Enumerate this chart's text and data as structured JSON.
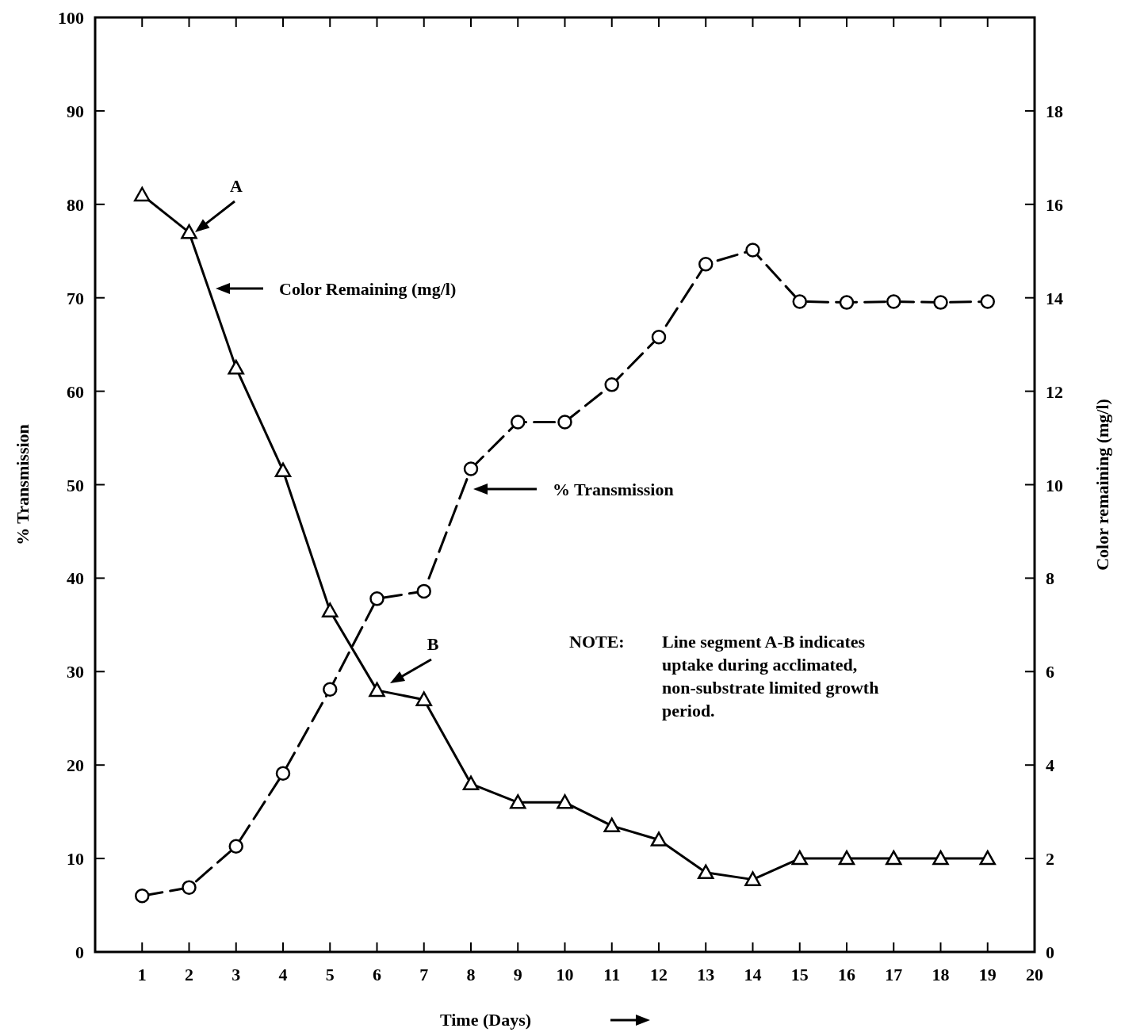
{
  "chart_data": {
    "type": "line",
    "xlabel": "Time    (Days)",
    "ylabel": "% Transmission",
    "y2label": "Color remaining (mg/l)",
    "x": [
      1,
      2,
      3,
      4,
      5,
      6,
      7,
      8,
      9,
      10,
      11,
      12,
      13,
      14,
      15,
      16,
      17,
      18,
      19
    ],
    "series": [
      {
        "color": "#000000",
        "axis": "y2",
        "marker": "triangle",
        "line_style": "solid",
        "values": [
          16.2,
          15.4,
          12.5,
          10.3,
          7.3,
          5.6,
          5.4,
          3.6,
          3.2,
          3.2,
          2.7,
          2.4,
          1.7,
          1.55,
          2.0,
          2.0,
          2.0,
          2.0,
          2.0
        ]
      },
      {
        "color": "#000000",
        "axis": "y",
        "marker": "circle",
        "line_style": "dashed",
        "values": [
          6.0,
          6.9,
          11.3,
          19.1,
          28.1,
          37.8,
          38.6,
          51.7,
          56.7,
          56.7,
          60.7,
          65.8,
          73.6,
          75.1,
          69.6,
          69.5,
          69.6,
          69.5,
          69.6
        ]
      }
    ],
    "xlim": [
      0,
      20
    ],
    "xticks": [
      1,
      2,
      3,
      4,
      5,
      6,
      7,
      8,
      9,
      10,
      11,
      12,
      13,
      14,
      15,
      16,
      17,
      18,
      19,
      20
    ],
    "ylim": [
      0,
      100
    ],
    "yticks": [
      0,
      10,
      20,
      30,
      40,
      50,
      60,
      70,
      80,
      90,
      100
    ],
    "y2lim": [
      0,
      20
    ],
    "y2ticks": [
      0,
      2,
      4,
      6,
      8,
      10,
      12,
      14,
      16,
      18
    ],
    "grid": false,
    "annotations": [
      "A",
      "B",
      "Color Remaining (mg/l)",
      "% Transmission",
      "NOTE:  Line segment A-B indicates uptake during acclimated, non-substrate limited growth period."
    ]
  }
}
